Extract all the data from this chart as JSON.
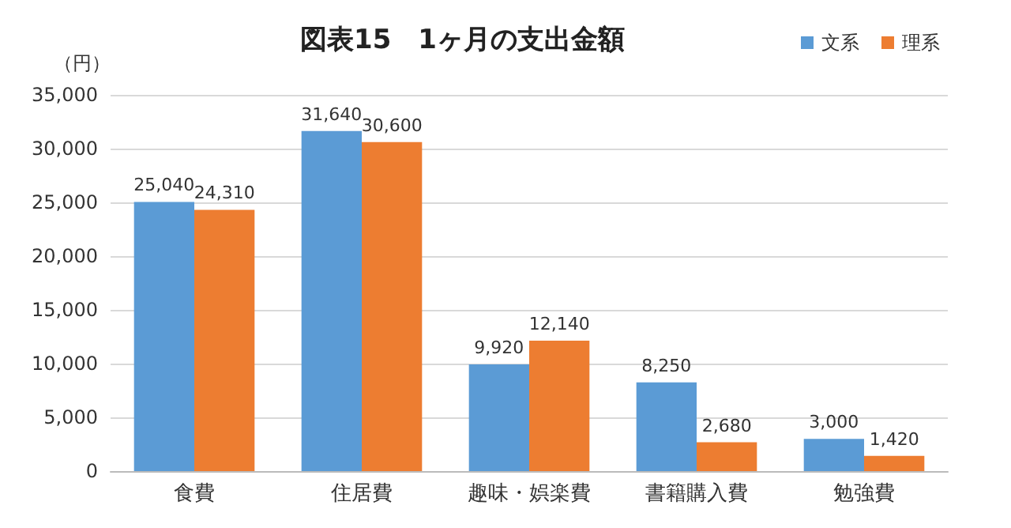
{
  "chart_data": {
    "type": "bar",
    "title": "図表15　1ヶ月の支出金額",
    "ylabel": "（円）",
    "categories": [
      "食費",
      "住居費",
      "趣味・娯楽費",
      "書籍購入費",
      "勉強費"
    ],
    "series": [
      {
        "name": "文系",
        "color": "#5b9bd5",
        "values": [
          25040,
          31640,
          9920,
          8250,
          3000
        ],
        "value_labels": [
          "25,040",
          "31,640",
          "9,920",
          "8,250",
          "3,000"
        ]
      },
      {
        "name": "理系",
        "color": "#ed7d31",
        "values": [
          24310,
          30600,
          12140,
          2680,
          1420
        ],
        "value_labels": [
          "24,310",
          "30,600",
          "12,140",
          "2,680",
          "1,420"
        ]
      }
    ],
    "ylim": [
      0,
      35000
    ],
    "yticks": [
      0,
      {
        "value": 5000,
        "label": "5,000"
      },
      {
        "value": 10000,
        "label": "10,000"
      },
      {
        "value": 15000,
        "label": "15,000"
      },
      {
        "value": 20000,
        "label": "20,000"
      },
      {
        "value": 25000,
        "label": "25,000"
      },
      {
        "value": 30000,
        "label": "30,000"
      },
      {
        "value": 35000,
        "label": "35,000"
      }
    ],
    "grid": "y",
    "legend": "top right"
  }
}
